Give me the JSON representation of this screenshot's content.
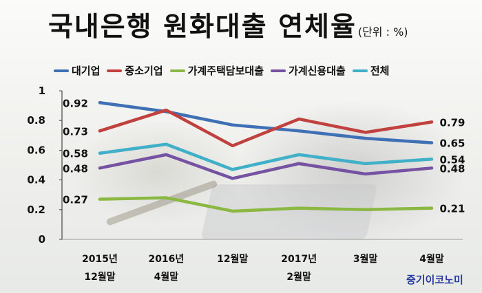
{
  "title": "국내은행 원화대출 연체율",
  "unit": "(단위 : %)",
  "source": "중기이코노미",
  "colors": {
    "대기업": "#3f6fb4",
    "중소기업": "#c0413d",
    "가계주택담보대출": "#8bb842",
    "가계신용대출": "#7652a3",
    "전체": "#3fb0c8"
  },
  "chart_data": {
    "type": "line",
    "title": "국내은행 원화대출 연체율",
    "xlabel": "",
    "ylabel": "",
    "ylim": [
      0,
      1
    ],
    "yticks": [
      "0",
      "0.2",
      "0.4",
      "0.6",
      "0.8",
      "1"
    ],
    "categories": [
      [
        "2015년",
        "12월말"
      ],
      [
        "2016년",
        "4월말"
      ],
      [
        "12월말"
      ],
      [
        "2017년",
        "2월말"
      ],
      [
        "3월말"
      ],
      [
        "4월말"
      ]
    ],
    "series": [
      {
        "name": "대기업",
        "values": [
          0.92,
          0.86,
          0.77,
          0.73,
          0.68,
          0.65
        ],
        "labels": [
          "0.92",
          "",
          "",
          "",
          "",
          "0.65"
        ]
      },
      {
        "name": "중소기업",
        "values": [
          0.73,
          0.87,
          0.63,
          0.81,
          0.72,
          0.79
        ],
        "labels": [
          "0.73",
          "",
          "",
          "",
          "",
          "0.79"
        ]
      },
      {
        "name": "가계주택담보대출",
        "values": [
          0.27,
          0.28,
          0.19,
          0.21,
          0.2,
          0.21
        ],
        "labels": [
          "0.27",
          "",
          "",
          "",
          "",
          "0.21"
        ]
      },
      {
        "name": "가계신용대출",
        "values": [
          0.48,
          0.57,
          0.41,
          0.51,
          0.44,
          0.48
        ],
        "labels": [
          "0.48",
          "",
          "",
          "",
          "",
          "0.48"
        ]
      },
      {
        "name": "전체",
        "values": [
          0.58,
          0.64,
          0.47,
          0.57,
          0.51,
          0.54
        ],
        "labels": [
          "0.58",
          "",
          "",
          "",
          "",
          "0.54"
        ]
      }
    ],
    "legend_position": "top",
    "grid": false
  }
}
